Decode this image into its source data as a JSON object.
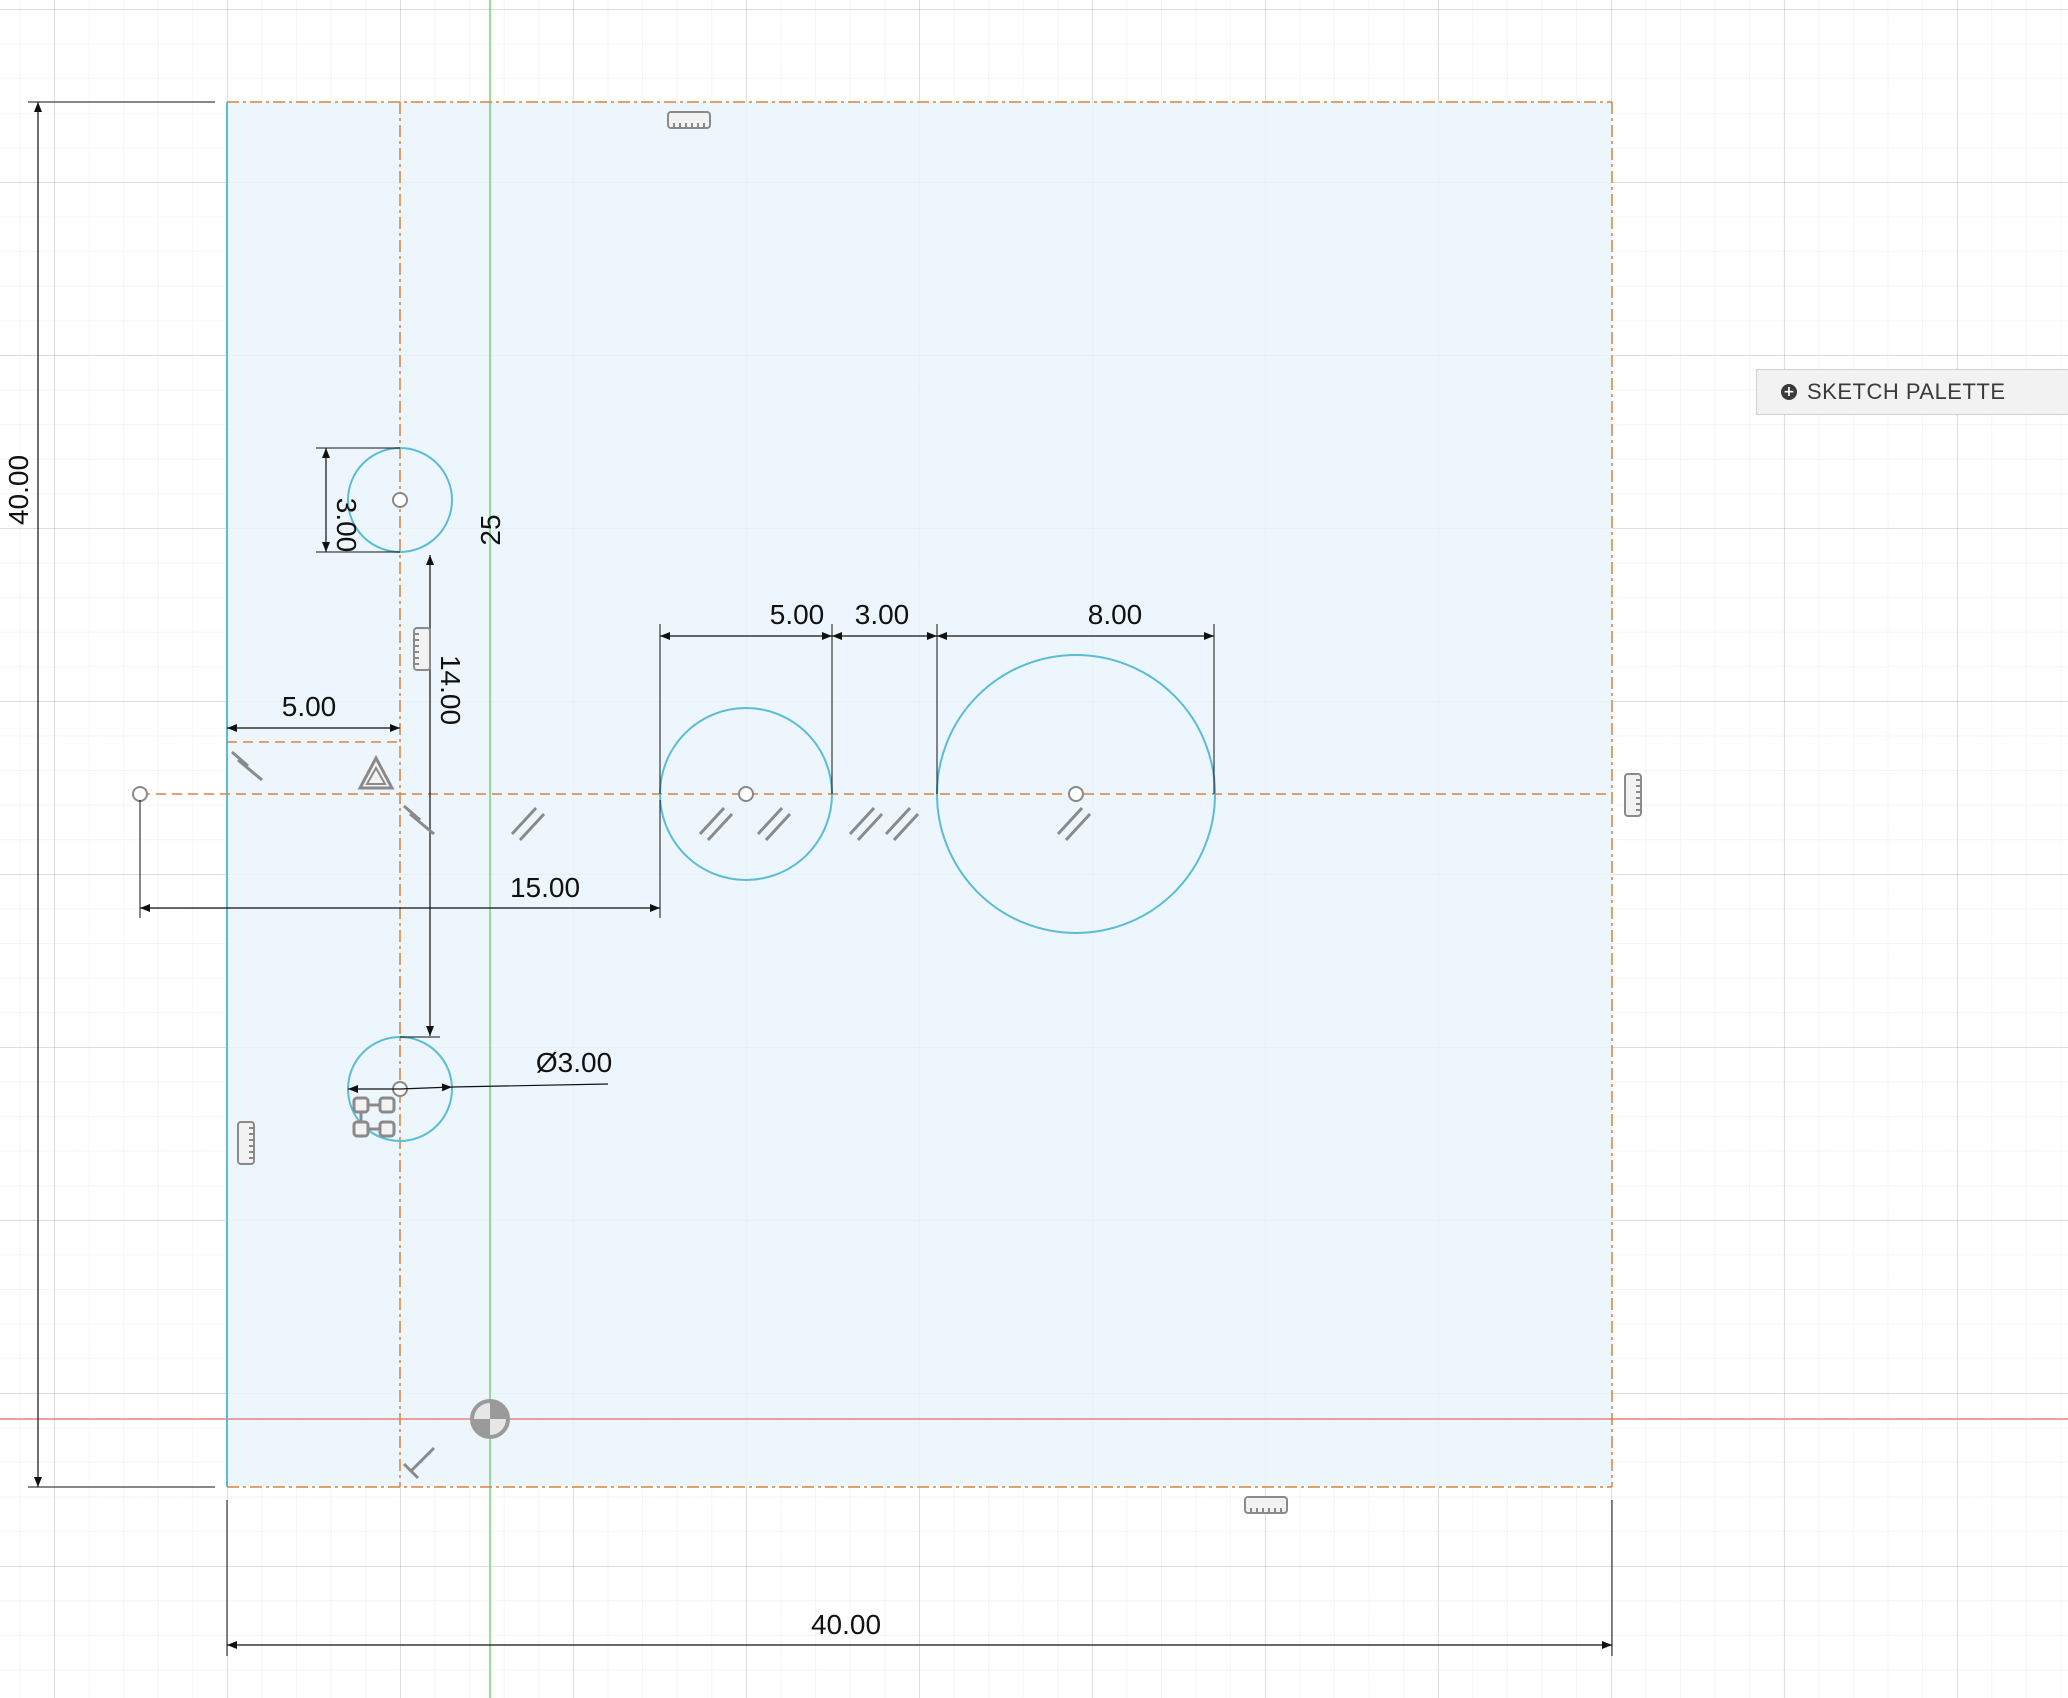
{
  "sketch_palette": {
    "label": "SKETCH PALETTE",
    "icon": "plus-circle-icon"
  },
  "dimensions": {
    "overall_height": "40.00",
    "overall_width": "40.00",
    "small_circle_top_diameter": "3.00",
    "vertical_spacing": "14.00",
    "left_offset": "5.00",
    "construction_angle": "25",
    "mid_circle_width": "5.00",
    "gap": "3.00",
    "large_circle_width": "8.00",
    "horizontal_offset": "15.00",
    "bottom_circle_diameter": "Ø3.00"
  },
  "colors": {
    "sketch_fill": "#eaf5fc",
    "circle_stroke": "#5bbcd6",
    "construction_line": "#d9843a",
    "y_axis": "#7bd17b",
    "x_axis": "#e88080",
    "dimension_line": "#111111",
    "constraint_glyph": "#7a7a7a"
  }
}
